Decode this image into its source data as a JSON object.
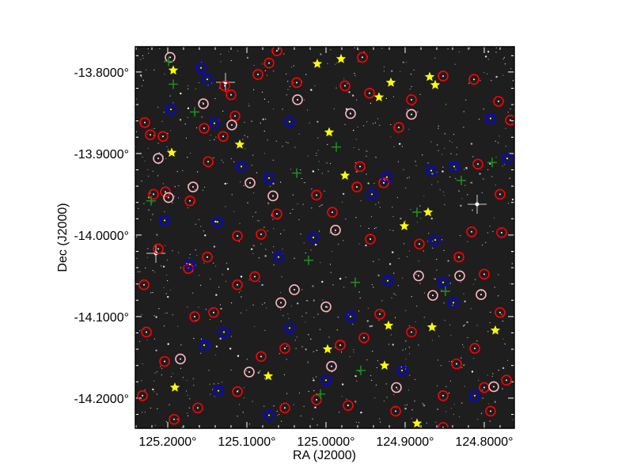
{
  "chart_data": {
    "type": "scatter",
    "title": "",
    "xlabel": "RA (J2000)",
    "ylabel": "Dec (J2000)",
    "xlim": [
      125.241,
      124.762
    ],
    "ylim": [
      -13.769,
      -14.237
    ],
    "x_reversed": true,
    "grid": false,
    "background": "grayscale sky image",
    "x_ticks": [
      125.2,
      125.1,
      125.0,
      124.9,
      124.8
    ],
    "x_tick_labels": [
      "125.2000°",
      "125.1000°",
      "125.0000°",
      "124.9000°",
      "124.8000°"
    ],
    "y_ticks": [
      -13.8,
      -13.9,
      -14.0,
      -14.1,
      -14.2
    ],
    "y_tick_labels": [
      "-13.8000°",
      "-13.9000°",
      "-14.0000°",
      "-14.1000°",
      "-14.2000°"
    ],
    "series": [
      {
        "marker": "circle",
        "color": "#ff0000",
        "points": [
          [
            125.229,
            -13.862
          ],
          [
            125.222,
            -13.877
          ],
          [
            125.206,
            -13.879
          ],
          [
            125.218,
            -13.95
          ],
          [
            125.203,
            -13.947
          ],
          [
            125.172,
            -13.958
          ],
          [
            125.154,
            -13.869
          ],
          [
            125.149,
            -13.91
          ],
          [
            125.13,
            -13.879
          ],
          [
            125.115,
            -13.854
          ],
          [
            125.12,
            -13.828
          ],
          [
            125.128,
            -13.817
          ],
          [
            125.086,
            -13.803
          ],
          [
            125.072,
            -13.789
          ],
          [
            125.062,
            -13.774
          ],
          [
            125.037,
            -13.813
          ],
          [
            124.976,
            -13.817
          ],
          [
            124.954,
            -13.782
          ],
          [
            124.945,
            -13.826
          ],
          [
            124.908,
            -13.868
          ],
          [
            124.892,
            -13.834
          ],
          [
            124.852,
            -13.805
          ],
          [
            124.813,
            -13.809
          ],
          [
            124.782,
            -13.836
          ],
          [
            124.767,
            -13.859
          ],
          [
            124.808,
            -13.913
          ],
          [
            124.78,
            -13.95
          ],
          [
            124.816,
            -13.996
          ],
          [
            124.778,
            -13.997
          ],
          [
            124.8,
            -14.048
          ],
          [
            124.832,
            -14.027
          ],
          [
            124.882,
            -14.011
          ],
          [
            124.944,
            -14.005
          ],
          [
            124.961,
            -13.941
          ],
          [
            124.957,
            -13.916
          ],
          [
            124.927,
            -13.936
          ],
          [
            124.992,
            -13.972
          ],
          [
            125.012,
            -13.951
          ],
          [
            125.062,
            -13.974
          ],
          [
            125.112,
            -14.001
          ],
          [
            125.082,
            -13.999
          ],
          [
            125.15,
            -14.027
          ],
          [
            125.174,
            -14.041
          ],
          [
            125.212,
            -14.017
          ],
          [
            125.23,
            -14.061
          ],
          [
            125.227,
            -14.119
          ],
          [
            125.204,
            -14.155
          ],
          [
            125.166,
            -14.1
          ],
          [
            125.142,
            -14.095
          ],
          [
            125.112,
            -14.061
          ],
          [
            125.09,
            -14.051
          ],
          [
            125.082,
            -14.149
          ],
          [
            125.052,
            -14.139
          ],
          [
            124.982,
            -14.135
          ],
          [
            124.952,
            -14.126
          ],
          [
            124.932,
            -14.097
          ],
          [
            124.892,
            -14.119
          ],
          [
            124.835,
            -14.158
          ],
          [
            124.812,
            -14.139
          ],
          [
            124.78,
            -14.095
          ],
          [
            124.772,
            -14.178
          ],
          [
            124.852,
            -14.197
          ],
          [
            124.912,
            -14.216
          ],
          [
            124.972,
            -14.209
          ],
          [
            125.012,
            -14.202
          ],
          [
            125.052,
            -14.212
          ],
          [
            125.112,
            -14.192
          ],
          [
            125.162,
            -14.212
          ],
          [
            125.192,
            -14.226
          ],
          [
            125.232,
            -14.197
          ],
          [
            124.852,
            -14.236
          ],
          [
            124.792,
            -14.216
          ],
          [
            124.8,
            -14.187
          ]
        ]
      },
      {
        "marker": "circle",
        "color": "#0000ff",
        "points": [
          [
            125.196,
            -13.846
          ],
          [
            125.158,
            -13.795
          ],
          [
            125.15,
            -13.809
          ],
          [
            125.141,
            -13.863
          ],
          [
            125.107,
            -13.916
          ],
          [
            125.072,
            -13.93
          ],
          [
            125.046,
            -13.861
          ],
          [
            124.923,
            -13.929
          ],
          [
            124.867,
            -13.921
          ],
          [
            124.838,
            -13.916
          ],
          [
            124.792,
            -13.857
          ],
          [
            124.771,
            -13.906
          ],
          [
            125.204,
            -13.982
          ],
          [
            125.137,
            -13.984
          ],
          [
            125.172,
            -14.036
          ],
          [
            125.06,
            -14.027
          ],
          [
            124.942,
            -13.95
          ],
          [
            124.862,
            -14.006
          ],
          [
            124.852,
            -14.058
          ],
          [
            124.922,
            -14.056
          ],
          [
            125.016,
            -14.003
          ],
          [
            124.969,
            -14.1
          ],
          [
            125.046,
            -14.114
          ],
          [
            125.129,
            -14.119
          ],
          [
            125.154,
            -14.135
          ],
          [
            125.0,
            -14.178
          ],
          [
            125.072,
            -14.221
          ],
          [
            125.136,
            -14.191
          ],
          [
            124.904,
            -14.166
          ],
          [
            124.812,
            -14.197
          ],
          [
            124.839,
            -14.083
          ]
        ]
      },
      {
        "marker": "circle",
        "color": "#ffb6c1",
        "points": [
          [
            125.197,
            -13.782
          ],
          [
            125.155,
            -13.839
          ],
          [
            125.119,
            -13.865
          ],
          [
            125.199,
            -13.954
          ],
          [
            125.168,
            -13.941
          ],
          [
            125.096,
            -13.936
          ],
          [
            125.067,
            -13.952
          ],
          [
            125.036,
            -13.834
          ],
          [
            124.969,
            -13.851
          ],
          [
            124.988,
            -13.994
          ],
          [
            124.865,
            -14.074
          ],
          [
            124.831,
            -14.05
          ],
          [
            124.883,
            -14.05
          ],
          [
            125.057,
            -14.083
          ],
          [
            125.04,
            -14.067
          ],
          [
            125.184,
            -14.152
          ],
          [
            125.097,
            -14.168
          ],
          [
            124.993,
            -14.161
          ],
          [
            124.911,
            -14.187
          ],
          [
            124.788,
            -14.186
          ],
          [
            124.804,
            -14.073
          ],
          [
            125.212,
            -13.906
          ],
          [
            124.892,
            -13.852
          ],
          [
            125.0,
            -14.088
          ]
        ]
      },
      {
        "marker": "plus",
        "color": "#1e8c1e",
        "points": [
          [
            125.199,
            -13.787
          ],
          [
            125.193,
            -13.815
          ],
          [
            125.166,
            -13.849
          ],
          [
            124.987,
            -13.892
          ],
          [
            125.037,
            -13.924
          ],
          [
            124.885,
            -13.972
          ],
          [
            125.022,
            -14.031
          ],
          [
            124.963,
            -14.058
          ],
          [
            124.849,
            -14.069
          ],
          [
            124.956,
            -14.166
          ],
          [
            125.007,
            -14.195
          ],
          [
            124.829,
            -13.933
          ],
          [
            124.79,
            -13.911
          ],
          [
            125.221,
            -13.958
          ]
        ]
      },
      {
        "marker": "star",
        "color": "#ffff00",
        "points": [
          [
            125.193,
            -13.798
          ],
          [
            124.981,
            -13.784
          ],
          [
            125.011,
            -13.79
          ],
          [
            124.918,
            -13.813
          ],
          [
            124.862,
            -13.816
          ],
          [
            124.869,
            -13.806
          ],
          [
            124.933,
            -13.831
          ],
          [
            125.109,
            -13.889
          ],
          [
            124.996,
            -13.874
          ],
          [
            125.195,
            -13.899
          ],
          [
            124.976,
            -13.927
          ],
          [
            124.871,
            -13.972
          ],
          [
            124.901,
            -13.989
          ],
          [
            124.921,
            -14.111
          ],
          [
            124.866,
            -14.113
          ],
          [
            124.786,
            -14.117
          ],
          [
            124.998,
            -14.14
          ],
          [
            124.926,
            -14.16
          ],
          [
            125.073,
            -14.173
          ],
          [
            125.191,
            -14.187
          ],
          [
            124.885,
            -14.231
          ]
        ]
      }
    ]
  }
}
